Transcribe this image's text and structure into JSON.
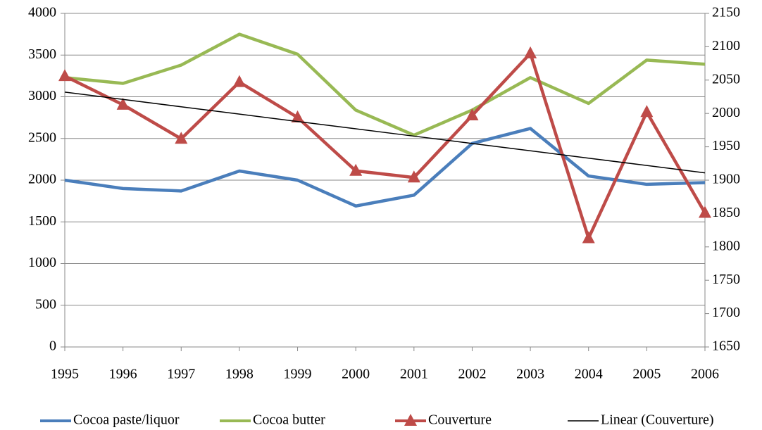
{
  "chart_data": {
    "type": "line",
    "categories": [
      "1995",
      "1996",
      "1997",
      "1998",
      "1999",
      "2000",
      "2001",
      "2002",
      "2003",
      "2004",
      "2005",
      "2006"
    ],
    "ylim": [
      0,
      4000
    ],
    "yticks": [
      0,
      500,
      1000,
      1500,
      2000,
      2500,
      3000,
      3500,
      4000
    ],
    "y2lim": [
      1650,
      2150
    ],
    "y2ticks": [
      1650,
      1700,
      1750,
      1800,
      1850,
      1900,
      1950,
      2000,
      2050,
      2100,
      2150
    ],
    "grid": true,
    "legend": "bottom",
    "series": [
      {
        "name": "Cocoa paste/liquor",
        "color": "#4a7ebb",
        "values": [
          2000,
          1900,
          1870,
          2110,
          2000,
          1690,
          1820,
          2440,
          2620,
          2050,
          1950,
          1970
        ]
      },
      {
        "name": "Cocoa butter",
        "color": "#98b954",
        "values": [
          3230,
          3160,
          3380,
          3750,
          3510,
          2840,
          2540,
          2840,
          3230,
          2920,
          3440,
          3390
        ]
      },
      {
        "name": "Couverture",
        "color": "#be4b48",
        "axis": "y2",
        "marker": "triangle",
        "values": [
          2056,
          2013,
          1962,
          2047,
          1994,
          1914,
          1904,
          1997,
          2090,
          1813,
          2002,
          1851
        ]
      },
      {
        "name": "Linear (Couverture)",
        "color": "#000000",
        "axis": "y2",
        "values": [
          2032,
          2021,
          2010,
          1999,
          1988,
          1977,
          1966,
          1955,
          1944,
          1933,
          1922,
          1911
        ]
      }
    ]
  }
}
